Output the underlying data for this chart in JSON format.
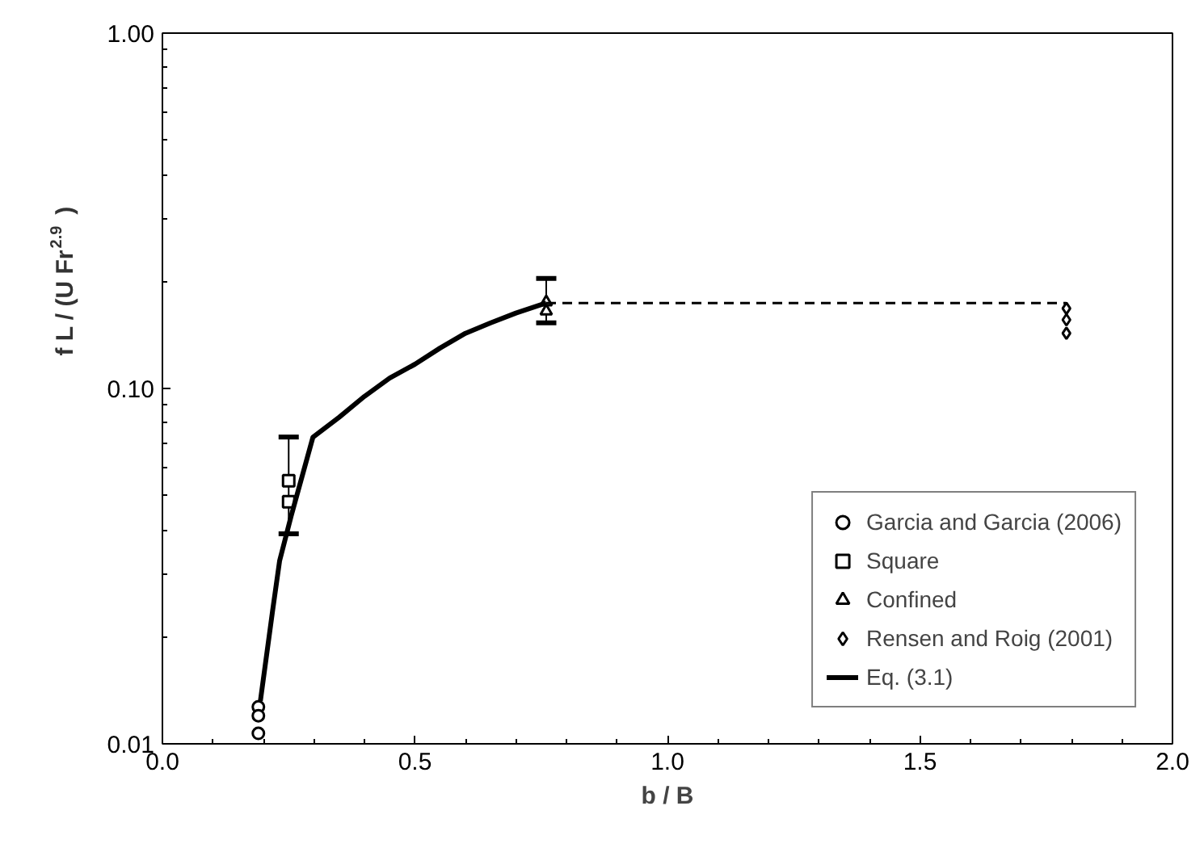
{
  "chart_data": {
    "type": "scatter",
    "xlabel": "b / B",
    "ylabel": "f L / (U Fr$^{2.9}$)",
    "log": "y",
    "grid": false,
    "legend": "bottom right",
    "xlim": [
      0,
      2
    ],
    "xticks": [
      {
        "value": 0,
        "label": "0.0"
      },
      {
        "value": 0.5,
        "label": "0.5"
      },
      {
        "value": 1,
        "label": "1.0"
      },
      {
        "value": 1.5,
        "label": "1.5"
      },
      {
        "value": 2,
        "label": "2.0"
      }
    ],
    "ylim": [
      0.01,
      1
    ],
    "yticks": [
      {
        "value": 0.01,
        "label": "0.01"
      },
      {
        "value": 0.1,
        "label": "0.10"
      },
      {
        "value": 1,
        "label": "1.00"
      }
    ],
    "series": [
      {
        "name": "Garcia and Garcia (2006)",
        "type": "scatter",
        "marker": "circle",
        "color": "#000000",
        "x": [
          0.19,
          0.19,
          0.19
        ],
        "values": [
          0.0127,
          0.012,
          0.0107
        ]
      },
      {
        "name": "Square",
        "type": "scatter",
        "marker": "square",
        "color": "#000000",
        "x": [
          0.25,
          0.25
        ],
        "values": [
          0.055,
          0.048
        ],
        "errors": [
          [
            0.039,
            0.073
          ],
          null
        ]
      },
      {
        "name": "Confined",
        "type": "scatter",
        "marker": "triangle",
        "color": "#000000",
        "x": [
          0.76,
          0.76
        ],
        "values": [
          0.175,
          0.165
        ],
        "errors": [
          [
            0.153,
            0.204
          ],
          null
        ]
      },
      {
        "name": "Rensen and Roig (2001)",
        "type": "scatter",
        "marker": "diamond",
        "color": "#000000",
        "x": [
          1.79,
          1.79,
          1.79
        ],
        "values": [
          0.168,
          0.156,
          0.143
        ]
      },
      {
        "name": "Eq. (3.1)",
        "type": "line",
        "line_style": "solid",
        "color": "#000000",
        "x": [
          0.194,
          0.218,
          0.232,
          0.255,
          0.298,
          0.35,
          0.4,
          0.45,
          0.5,
          0.55,
          0.6,
          0.65,
          0.7,
          0.76
        ],
        "values": [
          0.0132,
          0.0236,
          0.0327,
          0.0438,
          0.0729,
          0.083,
          0.095,
          0.107,
          0.117,
          0.13,
          0.143,
          0.153,
          0.163,
          0.174
        ]
      },
      {
        "type": "line",
        "line_style": "dashed",
        "color": "#000000",
        "x": [
          0.76,
          1.79
        ],
        "values": [
          0.174,
          0.174
        ]
      }
    ]
  }
}
